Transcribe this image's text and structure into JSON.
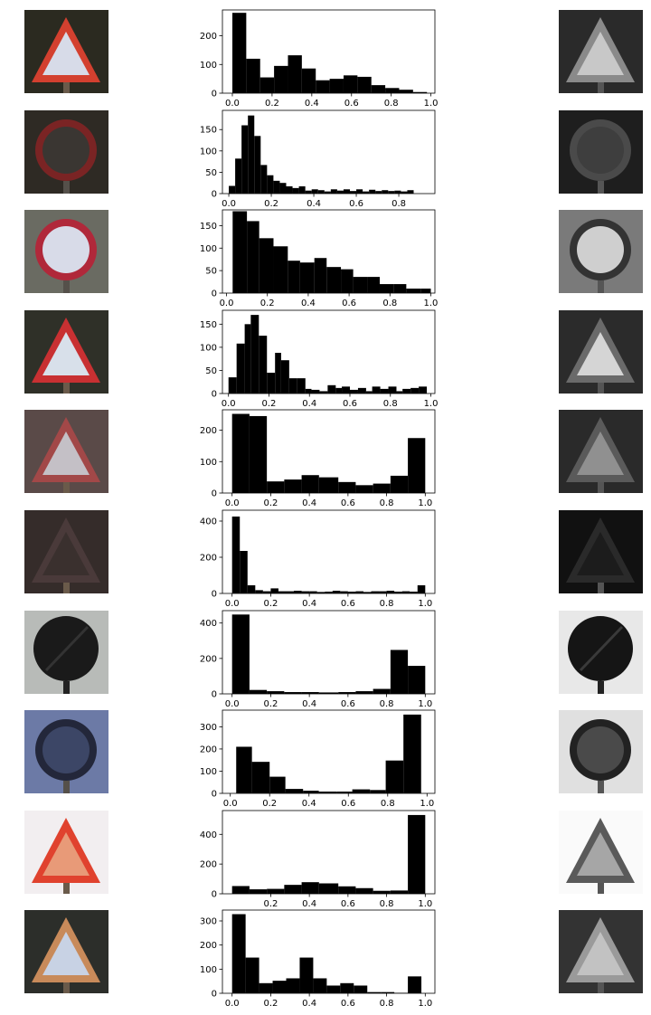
{
  "colors": {
    "bar": "#000000",
    "axis": "#000000",
    "background": "#ffffff"
  },
  "rows": [
    {
      "sign": "triangle-warning-sign",
      "left_palette": {
        "bg": "#2a2a22",
        "border": "#d13a2e",
        "fill": "#d9dbe6",
        "symbol": "#2a2a2a",
        "post": "#3a3a3a"
      },
      "histogram": {
        "edges": [
          0,
          0.05,
          0.15
        ],
        "values": []
      }
    }
  ],
  "chart_data": [
    {
      "type": "bar",
      "xlim": [
        -0.05,
        1.02
      ],
      "ylim": [
        0,
        290
      ],
      "xticks": [
        0.0,
        0.2,
        0.4,
        0.6,
        0.8,
        1.0
      ],
      "xticklabels": [
        "0.0",
        "0.2",
        "0.4",
        "0.6",
        "0.8",
        "1.0"
      ],
      "yticks": [
        0,
        100,
        200
      ],
      "yticklabels": [
        "0",
        "100",
        "200"
      ],
      "bins": [
        [
          0.0,
          0.07
        ],
        [
          0.07,
          0.14
        ],
        [
          0.14,
          0.21
        ],
        [
          0.21,
          0.28
        ],
        [
          0.28,
          0.35
        ],
        [
          0.35,
          0.42
        ],
        [
          0.42,
          0.49
        ],
        [
          0.49,
          0.56
        ],
        [
          0.56,
          0.63
        ],
        [
          0.63,
          0.7
        ],
        [
          0.7,
          0.77
        ],
        [
          0.77,
          0.84
        ],
        [
          0.84,
          0.91
        ],
        [
          0.91,
          0.98
        ]
      ],
      "values": [
        280,
        120,
        55,
        95,
        132,
        86,
        45,
        50,
        62,
        57,
        28,
        18,
        12,
        4
      ]
    },
    {
      "type": "bar",
      "xlim": [
        -0.03,
        0.97
      ],
      "ylim": [
        0,
        195
      ],
      "xticks": [
        0.0,
        0.2,
        0.4,
        0.6,
        0.8
      ],
      "xticklabels": [
        "0.0",
        "0.2",
        "0.4",
        "0.6",
        "0.8"
      ],
      "yticks": [
        0,
        50,
        100,
        150
      ],
      "yticklabels": [
        "0",
        "50",
        "100",
        "150"
      ],
      "bins": [
        [
          0.0,
          0.03
        ],
        [
          0.03,
          0.06
        ],
        [
          0.06,
          0.09
        ],
        [
          0.09,
          0.12
        ],
        [
          0.12,
          0.15
        ],
        [
          0.15,
          0.18
        ],
        [
          0.18,
          0.21
        ],
        [
          0.21,
          0.24
        ],
        [
          0.24,
          0.27
        ],
        [
          0.27,
          0.3
        ],
        [
          0.3,
          0.33
        ],
        [
          0.33,
          0.36
        ],
        [
          0.36,
          0.39
        ],
        [
          0.39,
          0.42
        ],
        [
          0.42,
          0.45
        ],
        [
          0.45,
          0.48
        ],
        [
          0.48,
          0.51
        ],
        [
          0.51,
          0.54
        ],
        [
          0.54,
          0.57
        ],
        [
          0.57,
          0.6
        ],
        [
          0.6,
          0.63
        ],
        [
          0.63,
          0.66
        ],
        [
          0.66,
          0.69
        ],
        [
          0.69,
          0.72
        ],
        [
          0.72,
          0.75
        ],
        [
          0.75,
          0.78
        ],
        [
          0.78,
          0.81
        ],
        [
          0.81,
          0.84
        ],
        [
          0.84,
          0.87
        ],
        [
          0.87,
          0.9
        ]
      ],
      "values": [
        18,
        82,
        160,
        183,
        135,
        67,
        43,
        30,
        25,
        17,
        13,
        17,
        7,
        10,
        8,
        5,
        10,
        7,
        10,
        6,
        10,
        5,
        9,
        6,
        8,
        6,
        7,
        5,
        8,
        0
      ]
    },
    {
      "type": "bar",
      "xlim": [
        -0.02,
        1.02
      ],
      "ylim": [
        0,
        185
      ],
      "xticks": [
        0.0,
        0.2,
        0.4,
        0.6,
        0.8,
        1.0
      ],
      "xticklabels": [
        "0.0",
        "0.2",
        "0.4",
        "0.6",
        "0.8",
        "1.0"
      ],
      "yticks": [
        0,
        50,
        100,
        150
      ],
      "yticklabels": [
        "0",
        "50",
        "100",
        "150"
      ],
      "bins": [
        [
          0.03,
          0.1
        ],
        [
          0.1,
          0.16
        ],
        [
          0.16,
          0.23
        ],
        [
          0.23,
          0.3
        ],
        [
          0.3,
          0.36
        ],
        [
          0.36,
          0.43
        ],
        [
          0.43,
          0.49
        ],
        [
          0.49,
          0.56
        ],
        [
          0.56,
          0.62
        ],
        [
          0.62,
          0.69
        ],
        [
          0.69,
          0.75
        ],
        [
          0.75,
          0.82
        ],
        [
          0.82,
          0.88
        ],
        [
          0.88,
          0.95
        ],
        [
          0.95,
          1.0
        ]
      ],
      "values": [
        182,
        160,
        122,
        104,
        72,
        68,
        78,
        58,
        53,
        36,
        36,
        20,
        20,
        10,
        10
      ]
    },
    {
      "type": "bar",
      "xlim": [
        -0.03,
        1.02
      ],
      "ylim": [
        0,
        180
      ],
      "xticks": [
        0.0,
        0.2,
        0.4,
        0.6,
        0.8,
        1.0
      ],
      "xticklabels": [
        "0.0",
        "0.2",
        "0.4",
        "0.6",
        "0.8",
        "1.0"
      ],
      "yticks": [
        0,
        50,
        100,
        150
      ],
      "yticklabels": [
        "0",
        "50",
        "100",
        "150"
      ],
      "bins": [
        [
          0.0,
          0.04
        ],
        [
          0.04,
          0.08
        ],
        [
          0.08,
          0.11
        ],
        [
          0.11,
          0.15
        ],
        [
          0.15,
          0.19
        ],
        [
          0.19,
          0.23
        ],
        [
          0.23,
          0.26
        ],
        [
          0.26,
          0.3
        ],
        [
          0.3,
          0.34
        ],
        [
          0.34,
          0.38
        ],
        [
          0.38,
          0.41
        ],
        [
          0.41,
          0.45
        ],
        [
          0.45,
          0.49
        ],
        [
          0.49,
          0.53
        ],
        [
          0.53,
          0.56
        ],
        [
          0.56,
          0.6
        ],
        [
          0.6,
          0.64
        ],
        [
          0.64,
          0.68
        ],
        [
          0.68,
          0.71
        ],
        [
          0.71,
          0.75
        ],
        [
          0.75,
          0.79
        ],
        [
          0.79,
          0.83
        ],
        [
          0.83,
          0.86
        ],
        [
          0.86,
          0.9
        ],
        [
          0.9,
          0.94
        ],
        [
          0.94,
          0.98
        ]
      ],
      "values": [
        35,
        108,
        150,
        170,
        125,
        45,
        88,
        72,
        33,
        33,
        10,
        8,
        5,
        18,
        12,
        15,
        8,
        12,
        5,
        15,
        10,
        15,
        5,
        10,
        12,
        15
      ]
    },
    {
      "type": "bar",
      "xlim": [
        -0.05,
        1.05
      ],
      "ylim": [
        0,
        265
      ],
      "xticks": [
        0.0,
        0.2,
        0.4,
        0.6,
        0.8,
        1.0
      ],
      "xticklabels": [
        "0.0",
        "0.2",
        "0.4",
        "0.6",
        "0.8",
        "1.0"
      ],
      "yticks": [
        0,
        100,
        200
      ],
      "yticklabels": [
        "0",
        "100",
        "200"
      ],
      "bins": [
        [
          0.0,
          0.09
        ],
        [
          0.09,
          0.18
        ],
        [
          0.18,
          0.27
        ],
        [
          0.27,
          0.36
        ],
        [
          0.36,
          0.45
        ],
        [
          0.45,
          0.55
        ],
        [
          0.55,
          0.64
        ],
        [
          0.64,
          0.73
        ],
        [
          0.73,
          0.82
        ],
        [
          0.82,
          0.91
        ],
        [
          0.91,
          1.0
        ]
      ],
      "values": [
        252,
        245,
        37,
        43,
        57,
        50,
        35,
        25,
        30,
        55,
        175
      ]
    },
    {
      "type": "bar",
      "xlim": [
        -0.05,
        1.05
      ],
      "ylim": [
        0,
        460
      ],
      "xticks": [
        0.0,
        0.2,
        0.4,
        0.6,
        0.8,
        1.0
      ],
      "xticklabels": [
        "0.0",
        "0.2",
        "0.4",
        "0.6",
        "0.8",
        "1.0"
      ],
      "yticks": [
        0,
        200,
        400
      ],
      "yticklabels": [
        "0",
        "200",
        "400"
      ],
      "bins": [
        [
          0.0,
          0.04
        ],
        [
          0.04,
          0.08
        ],
        [
          0.08,
          0.12
        ],
        [
          0.12,
          0.16
        ],
        [
          0.16,
          0.2
        ],
        [
          0.2,
          0.24
        ],
        [
          0.24,
          0.28
        ],
        [
          0.28,
          0.32
        ],
        [
          0.32,
          0.36
        ],
        [
          0.36,
          0.4
        ],
        [
          0.4,
          0.44
        ],
        [
          0.44,
          0.48
        ],
        [
          0.48,
          0.52
        ],
        [
          0.52,
          0.56
        ],
        [
          0.56,
          0.6
        ],
        [
          0.6,
          0.64
        ],
        [
          0.64,
          0.68
        ],
        [
          0.68,
          0.72
        ],
        [
          0.72,
          0.76
        ],
        [
          0.76,
          0.8
        ],
        [
          0.8,
          0.84
        ],
        [
          0.84,
          0.88
        ],
        [
          0.88,
          0.92
        ],
        [
          0.92,
          0.96
        ],
        [
          0.96,
          1.0
        ]
      ],
      "values": [
        425,
        235,
        45,
        18,
        12,
        28,
        12,
        12,
        15,
        12,
        12,
        8,
        10,
        15,
        12,
        10,
        12,
        8,
        12,
        12,
        15,
        10,
        12,
        10,
        45
      ]
    },
    {
      "type": "bar",
      "xlim": [
        -0.05,
        1.05
      ],
      "ylim": [
        0,
        470
      ],
      "xticks": [
        0.0,
        0.2,
        0.4,
        0.6,
        0.8,
        1.0
      ],
      "xticklabels": [
        "0.0",
        "0.2",
        "0.4",
        "0.6",
        "0.8",
        "1.0"
      ],
      "yticks": [
        0,
        200,
        400
      ],
      "yticklabels": [
        "0",
        "200",
        "400"
      ],
      "bins": [
        [
          0.0,
          0.09
        ],
        [
          0.09,
          0.18
        ],
        [
          0.18,
          0.27
        ],
        [
          0.27,
          0.36
        ],
        [
          0.36,
          0.45
        ],
        [
          0.45,
          0.55
        ],
        [
          0.55,
          0.64
        ],
        [
          0.64,
          0.73
        ],
        [
          0.73,
          0.82
        ],
        [
          0.82,
          0.91
        ],
        [
          0.91,
          1.0
        ]
      ],
      "values": [
        448,
        22,
        15,
        10,
        10,
        8,
        10,
        15,
        28,
        248,
        158
      ]
    },
    {
      "type": "bar",
      "xlim": [
        -0.04,
        1.04
      ],
      "ylim": [
        0,
        375
      ],
      "xticks": [
        0.0,
        0.2,
        0.4,
        0.6,
        0.8,
        1.0
      ],
      "xticklabels": [
        "0.0",
        "0.2",
        "0.4",
        "0.6",
        "0.8",
        "1.0"
      ],
      "yticks": [
        0,
        100,
        200,
        300
      ],
      "yticklabels": [
        "0",
        "100",
        "200",
        "300"
      ],
      "bins": [
        [
          0.03,
          0.11
        ],
        [
          0.11,
          0.2
        ],
        [
          0.2,
          0.28
        ],
        [
          0.28,
          0.37
        ],
        [
          0.37,
          0.45
        ],
        [
          0.45,
          0.54
        ],
        [
          0.54,
          0.62
        ],
        [
          0.62,
          0.71
        ],
        [
          0.71,
          0.79
        ],
        [
          0.79,
          0.88
        ],
        [
          0.88,
          0.97
        ]
      ],
      "values": [
        210,
        142,
        75,
        20,
        12,
        8,
        8,
        18,
        15,
        148,
        355
      ]
    },
    {
      "type": "bar",
      "xlim": [
        -0.05,
        1.05
      ],
      "ylim": [
        0,
        560
      ],
      "xticks": [
        0.2,
        0.4,
        0.6,
        0.8,
        1.0
      ],
      "xticklabels": [
        "0.2",
        "0.4",
        "0.6",
        "0.8",
        "1.0"
      ],
      "yticks": [
        0,
        200,
        400
      ],
      "yticklabels": [
        "0",
        "200",
        "400"
      ],
      "bins": [
        [
          0.0,
          0.09
        ],
        [
          0.09,
          0.18
        ],
        [
          0.18,
          0.27
        ],
        [
          0.27,
          0.36
        ],
        [
          0.36,
          0.45
        ],
        [
          0.45,
          0.55
        ],
        [
          0.55,
          0.64
        ],
        [
          0.64,
          0.73
        ],
        [
          0.73,
          0.82
        ],
        [
          0.82,
          0.91
        ],
        [
          0.91,
          1.0
        ]
      ],
      "values": [
        52,
        30,
        33,
        60,
        78,
        70,
        50,
        38,
        20,
        22,
        530
      ]
    },
    {
      "type": "bar",
      "xlim": [
        -0.05,
        1.05
      ],
      "ylim": [
        0,
        345
      ],
      "xticks": [
        0.0,
        0.2,
        0.4,
        0.6,
        0.8,
        1.0
      ],
      "xticklabels": [
        "0.0",
        "0.2",
        "0.4",
        "0.6",
        "0.8",
        "1.0"
      ],
      "yticks": [
        0,
        100,
        200,
        300
      ],
      "yticklabels": [
        "0",
        "100",
        "200",
        "300"
      ],
      "bins": [
        [
          0.0,
          0.07
        ],
        [
          0.07,
          0.14
        ],
        [
          0.14,
          0.21
        ],
        [
          0.21,
          0.28
        ],
        [
          0.28,
          0.35
        ],
        [
          0.35,
          0.42
        ],
        [
          0.42,
          0.49
        ],
        [
          0.49,
          0.56
        ],
        [
          0.56,
          0.63
        ],
        [
          0.63,
          0.7
        ],
        [
          0.7,
          0.77
        ],
        [
          0.77,
          0.84
        ],
        [
          0.84,
          0.91
        ],
        [
          0.91,
          0.98
        ]
      ],
      "values": [
        328,
        148,
        42,
        52,
        62,
        148,
        62,
        32,
        42,
        32,
        5,
        5,
        2,
        70
      ]
    }
  ]
}
